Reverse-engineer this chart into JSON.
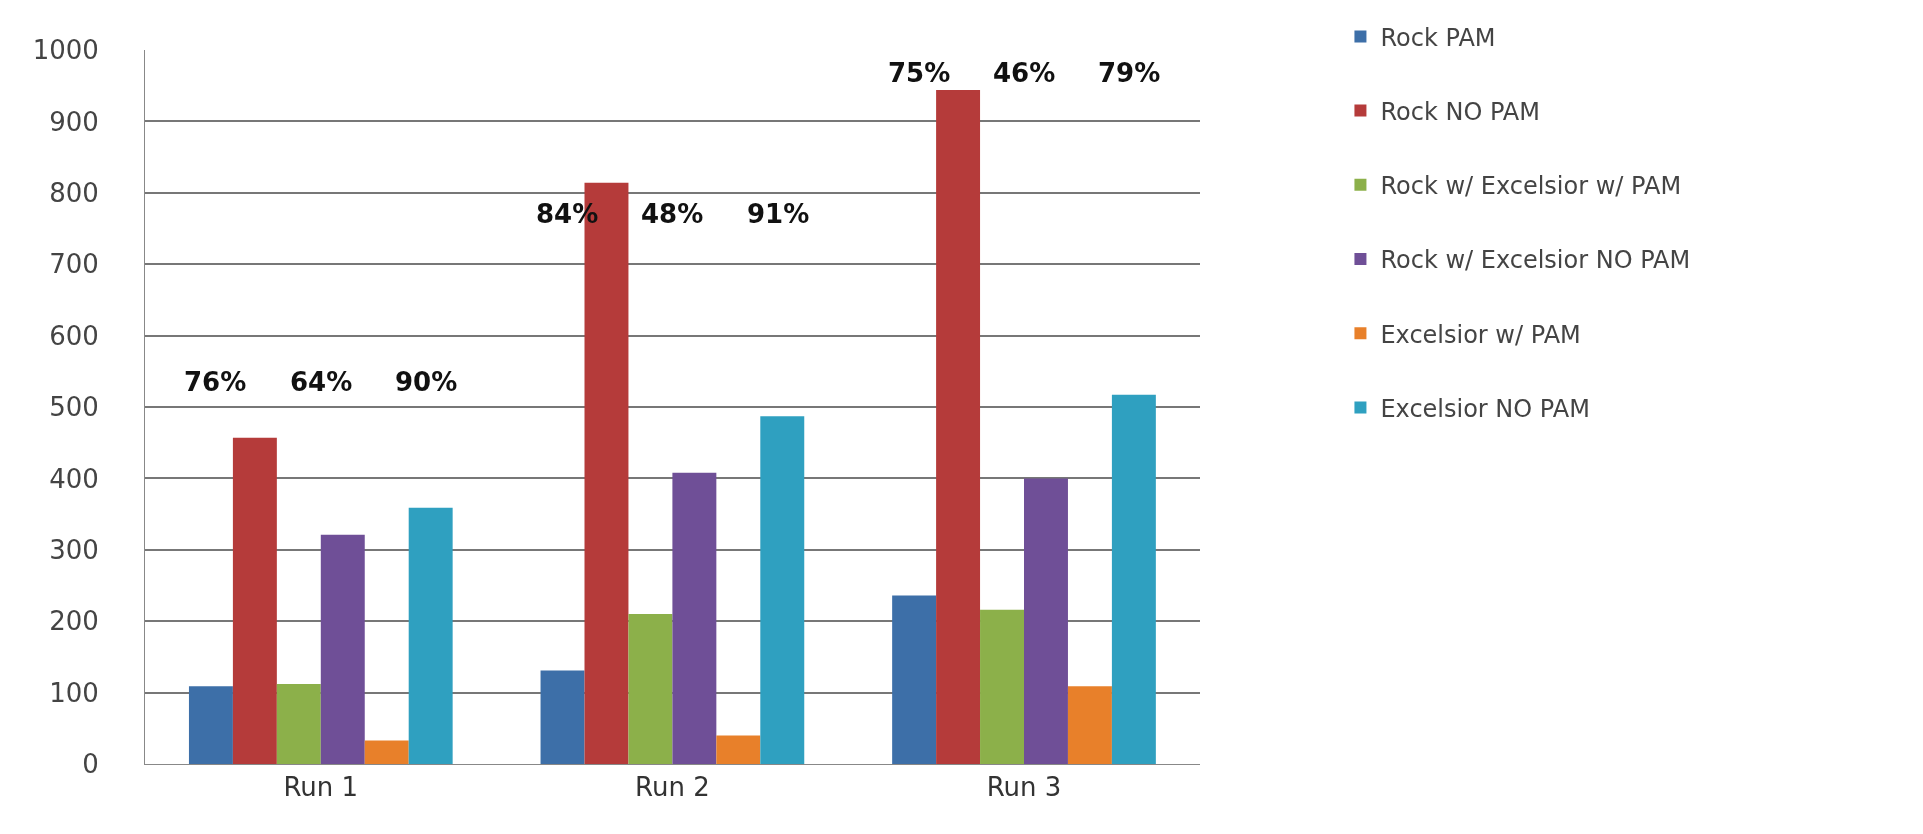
{
  "chart_data": {
    "type": "bar",
    "categories": [
      "Run 1",
      "Run 2",
      "Run 3"
    ],
    "series": [
      {
        "name": "Rock PAM",
        "color": "#3d6fa8",
        "values": [
          109,
          131,
          236
        ]
      },
      {
        "name": "Rock NO PAM",
        "color": "#b53b3a",
        "values": [
          457,
          814,
          944
        ]
      },
      {
        "name": "Rock w/ Excelsior w/ PAM",
        "color": "#8cb04a",
        "values": [
          112,
          210,
          216
        ]
      },
      {
        "name": "Rock w/ Excelsior NO PAM",
        "color": "#6f4f97",
        "values": [
          321,
          408,
          400
        ]
      },
      {
        "name": "Excelsior w/ PAM",
        "color": "#e8802a",
        "values": [
          33,
          40,
          109
        ]
      },
      {
        "name": "Excelsior NO PAM",
        "color": "#2fa0c0",
        "values": [
          359,
          487,
          517
        ]
      }
    ],
    "ylim": [
      0,
      1000
    ],
    "yticks": [
      0,
      100,
      200,
      300,
      400,
      500,
      600,
      700,
      800,
      900,
      1000
    ],
    "grid": "y",
    "legend": "right",
    "annotations": [
      "76%",
      "64%",
      "90%",
      "84%",
      "48%",
      "91%",
      "75%",
      "46%",
      "79%"
    ]
  }
}
